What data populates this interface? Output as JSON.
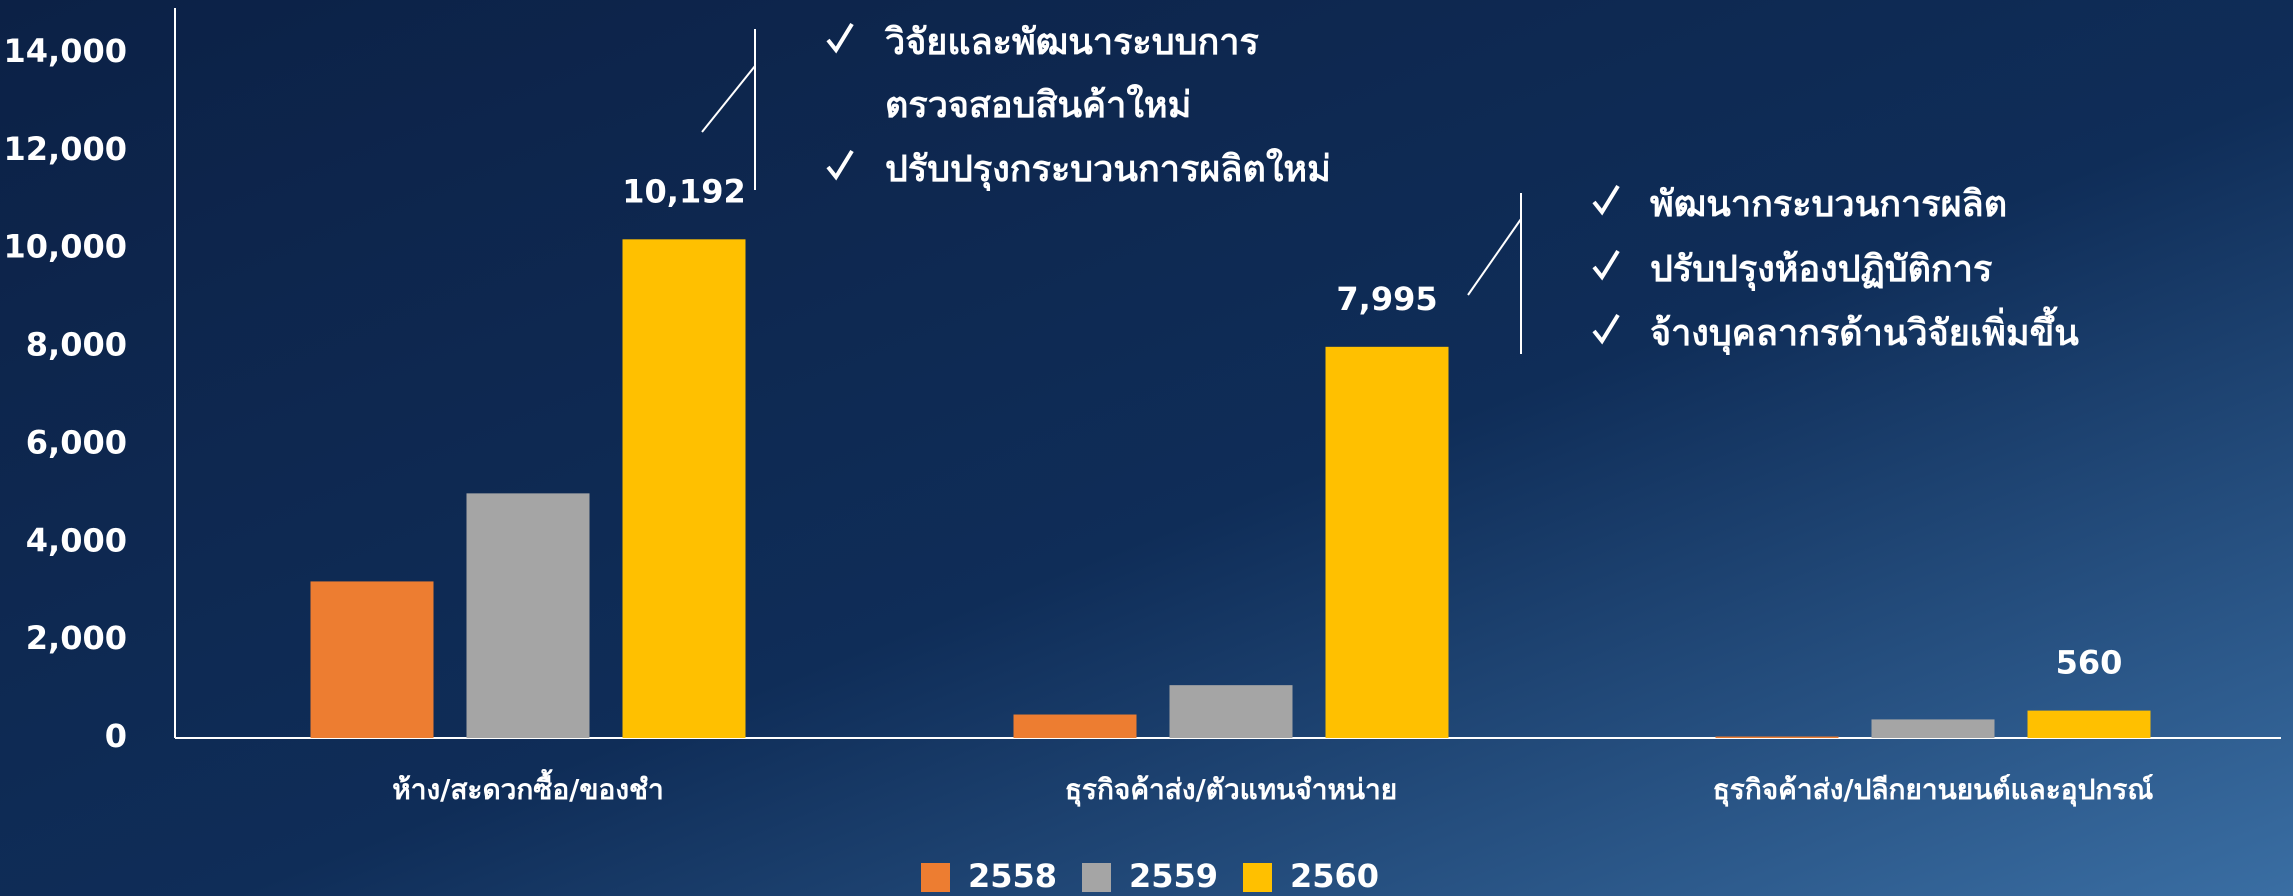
{
  "chart_data": {
    "type": "bar",
    "categories": [
      "ห้าง/สะดวกซื้อ/ของชำ",
      "ธุรกิจค้าส่ง/ตัวแทนจำหน่าย",
      "ธุรกิจค้าส่ง/ปลีกยานยนต์และอุปกรณ์"
    ],
    "series": [
      {
        "name": "2558",
        "color": "#ed7d31",
        "values": [
          3200,
          480,
          30
        ]
      },
      {
        "name": "2559",
        "color": "#a5a5a5",
        "values": [
          5000,
          1080,
          380
        ]
      },
      {
        "name": "2560",
        "color": "#ffc000",
        "values": [
          10192,
          7995,
          560
        ],
        "value_labels": [
          "10,192",
          "7,995",
          "560"
        ]
      }
    ],
    "ylim": [
      0,
      14000
    ],
    "yticks": [
      {
        "value": 0,
        "label": "0"
      },
      {
        "value": 2000,
        "label": "2,000"
      },
      {
        "value": 4000,
        "label": "4,000"
      },
      {
        "value": 6000,
        "label": "6,000"
      },
      {
        "value": 8000,
        "label": "8,000"
      },
      {
        "value": 10000,
        "label": "10,000"
      },
      {
        "value": 12000,
        "label": "12,000"
      },
      {
        "value": 14000,
        "label": "14,000"
      }
    ],
    "legend": "bottom",
    "annotations": [
      {
        "items": [
          "วิจัยและพัฒนาระบบการ",
          "ตรวจสอบสินค้าใหม่",
          "ปรับปรุงกระบวนการผลิตใหม่"
        ]
      },
      {
        "items": [
          "พัฒนากระบวนการผลิต",
          "ปรับปรุงห้องปฏิบัติการ",
          "จ้างบุคลากรด้านวิจัยเพิ่มขึ้น"
        ]
      }
    ]
  }
}
